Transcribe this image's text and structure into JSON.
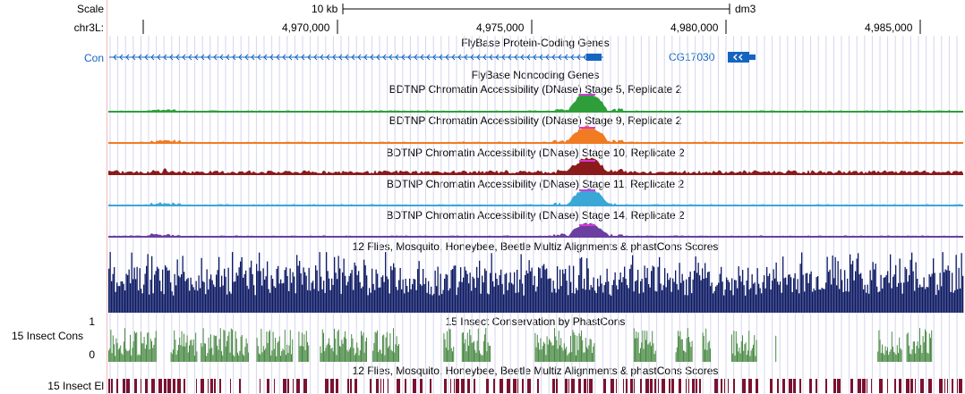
{
  "ruler": {
    "scale_label": "Scale",
    "scale_bar_label": "10 kb",
    "assembly": "dm3",
    "chrom_label": "chr3L:",
    "ticks": [
      {
        "label": "4,970,000",
        "pos": 4970000
      },
      {
        "label": "4,975,000",
        "pos": 4975000
      },
      {
        "label": "4,980,000",
        "pos": 4980000
      },
      {
        "label": "4,985,000",
        "pos": 4985000
      }
    ]
  },
  "tracks": {
    "protein_coding": {
      "title": "FlyBase Protein-Coding Genes",
      "left_gene": "Con",
      "right_gene": "CG17030",
      "color": "#1565c0"
    },
    "noncoding": {
      "title": "FlyBase Noncoding Genes",
      "color": "#1e88e5"
    },
    "dnase": [
      {
        "title": "BDTNP Chromatin Accessibility (DNase) Stage 5, Replicate 2",
        "color": "#2e9e3a"
      },
      {
        "title": "BDTNP Chromatin Accessibility (DNase) Stage 9, Replicate 2",
        "color": "#f07b22"
      },
      {
        "title": "BDTNP Chromatin Accessibility (DNase) Stage 10, Replicate 2",
        "color": "#8b1a1a"
      },
      {
        "title": "BDTNP Chromatin Accessibility (DNase) Stage 11, Replicate 2",
        "color": "#3ba7d6"
      },
      {
        "title": "BDTNP Chromatin Accessibility (DNase) Stage 14, Replicate 2",
        "color": "#6b3fa0"
      }
    ],
    "multiz": {
      "title": "12 Flies, Mosquito, Honeybee, Beetle Multiz Alignments & phastCons Scores",
      "color": "#0d1a63"
    },
    "insect_cons": {
      "title": "15 Insect Conservation by PhastCons",
      "side_label": "15 Insect Cons",
      "axis_max": "1",
      "axis_min": "0",
      "color": "#4a8a44"
    },
    "insect_el": {
      "title": "12 Flies, Mosquito, Honeybee, Beetle Multiz Alignments & phastCons Scores",
      "side_label": "15 Insect El",
      "color": "#7a1230"
    }
  },
  "colors": {
    "peak_top": "#d63ad6",
    "grid": "#d6d6f0"
  }
}
